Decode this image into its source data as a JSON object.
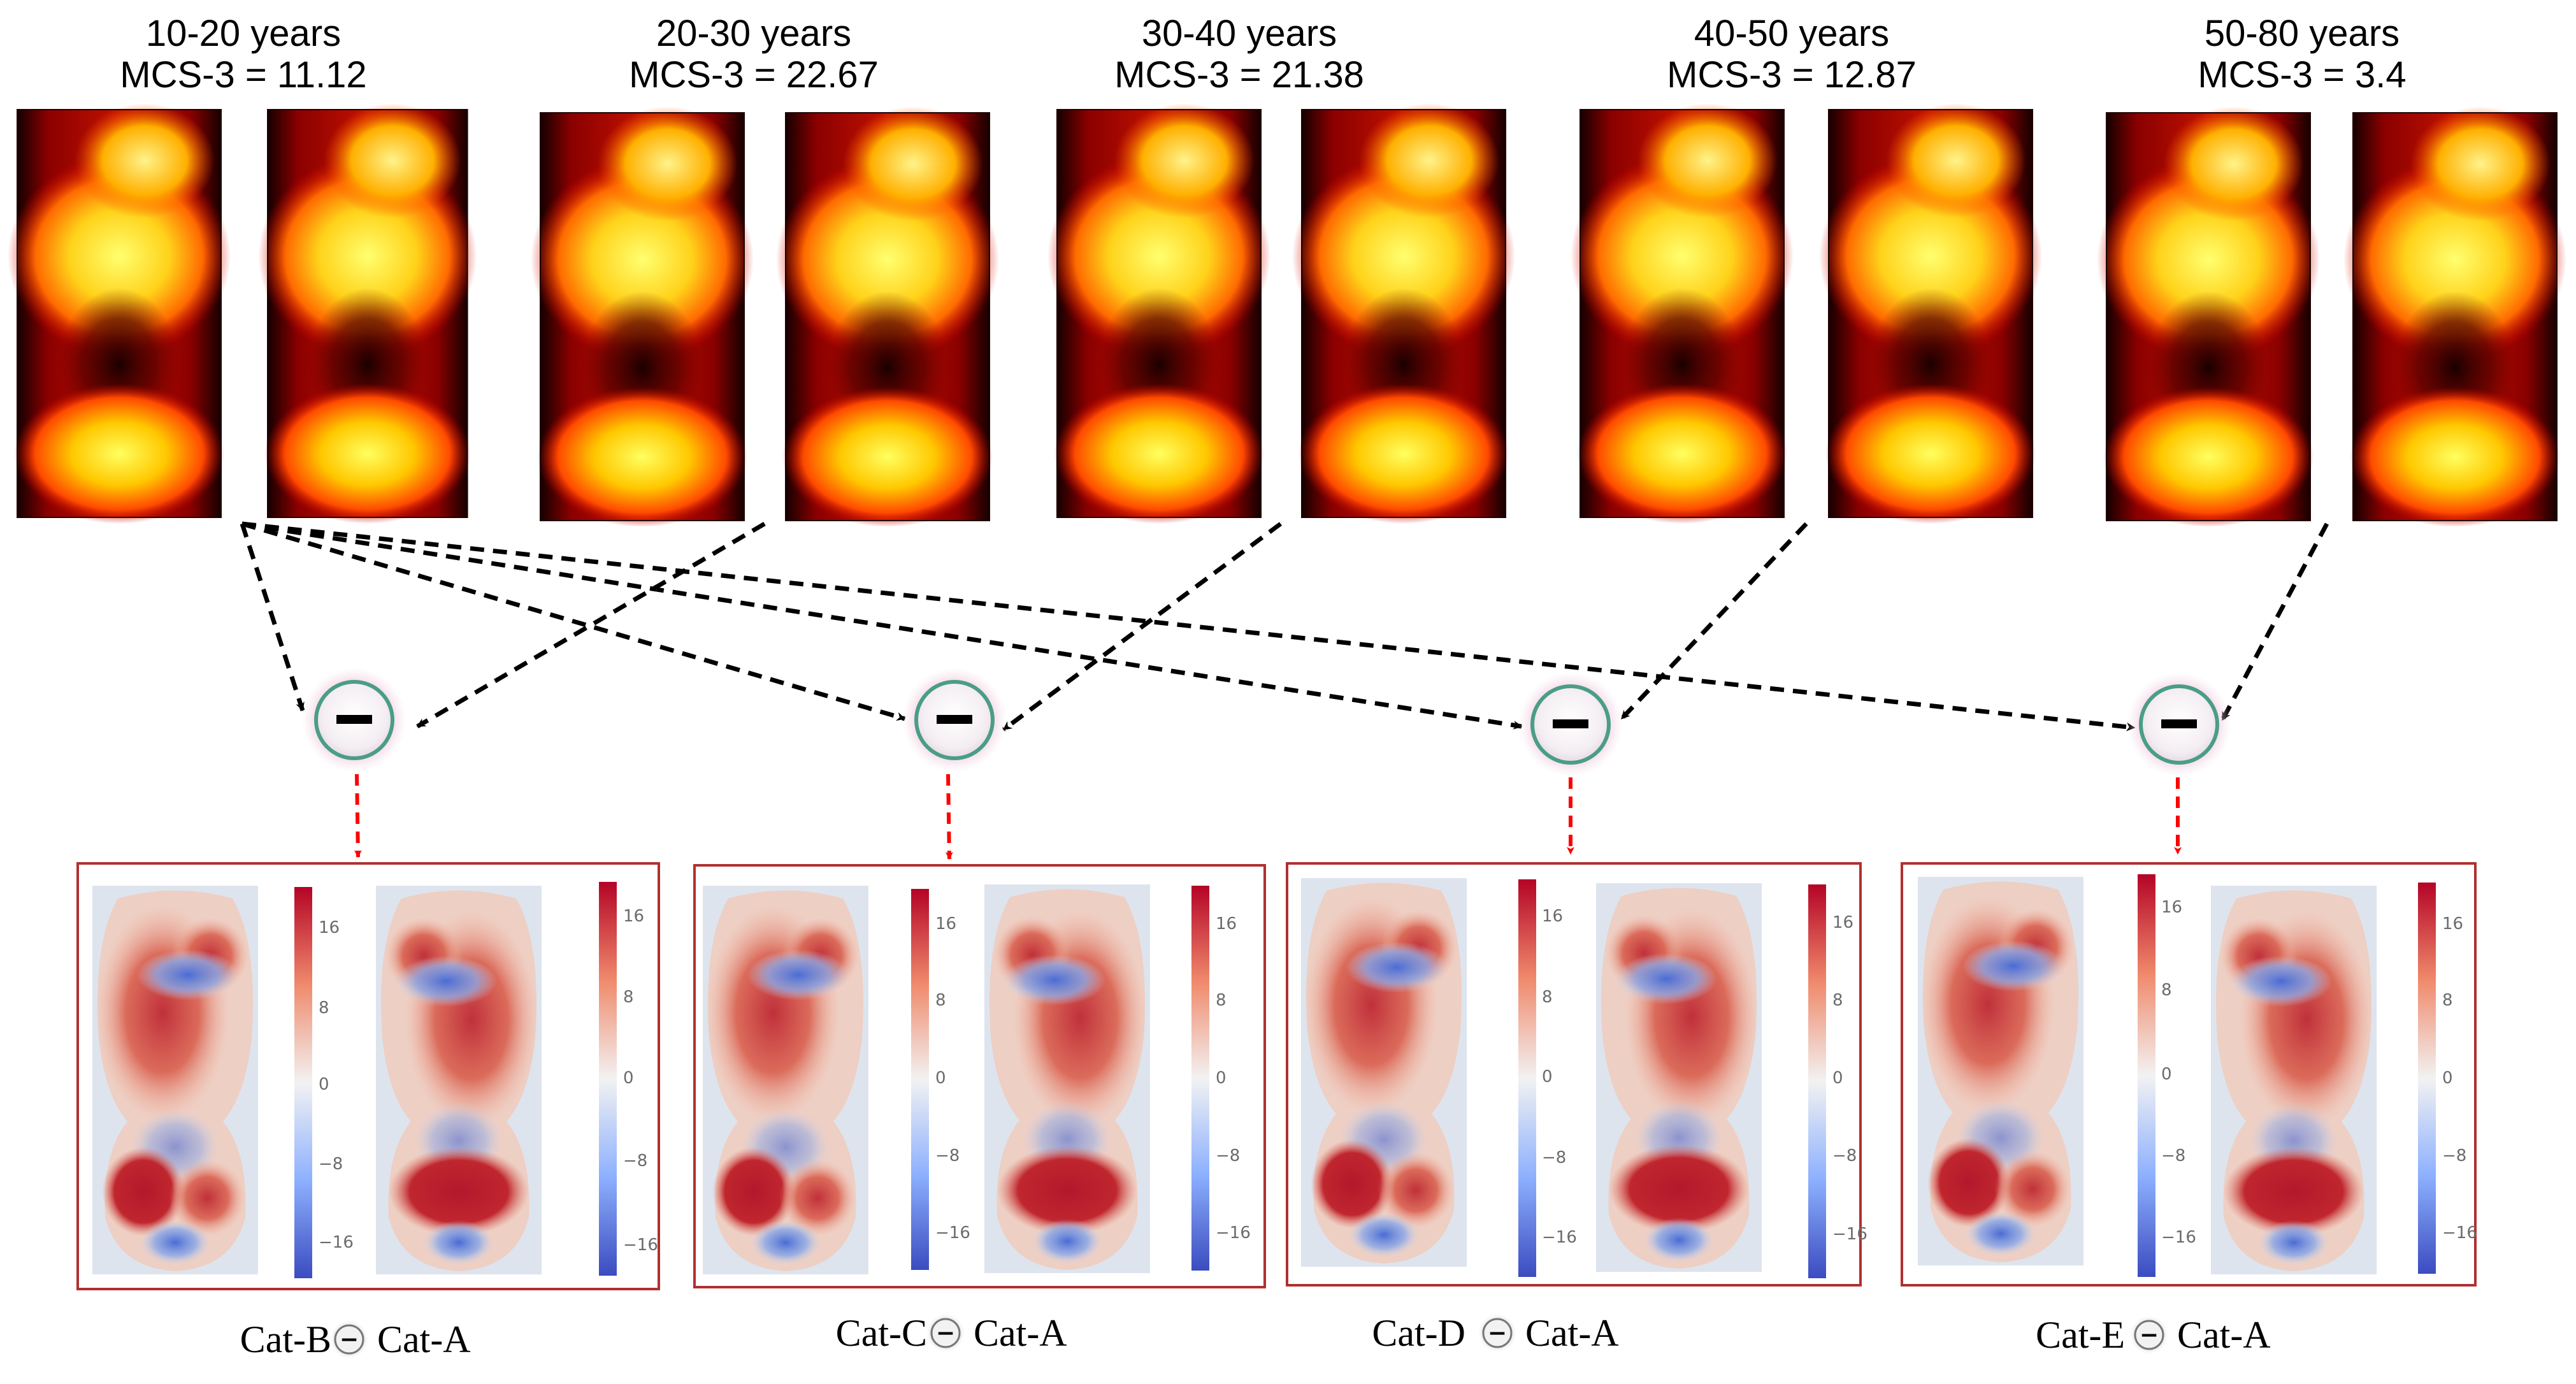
{
  "groups": [
    {
      "age": "10-20 years",
      "mcs": "MCS-3 = 11.12"
    },
    {
      "age": "20-30 years",
      "mcs": "MCS-3 = 22.67"
    },
    {
      "age": "30-40 years",
      "mcs": "MCS-3 = 21.38"
    },
    {
      "age": "40-50 years",
      "mcs": "MCS-3 = 12.87"
    },
    {
      "age": "50-80 years",
      "mcs": "MCS-3 = 3.4"
    }
  ],
  "operator_symbol": "−",
  "colorbar_ticks": [
    "16",
    "8",
    "0",
    "−8",
    "−16"
  ],
  "comparisons": [
    {
      "left": "Cat-B",
      "right": "Cat-A"
    },
    {
      "left": "Cat-C",
      "right": "Cat-A"
    },
    {
      "left": "Cat-D",
      "right": "Cat-A"
    },
    {
      "left": "Cat-E",
      "right": "Cat-A"
    }
  ],
  "colors": {
    "heat_hot": "#ffff66",
    "heat_mid": "#ff3300",
    "heat_cold": "#120000",
    "diff_pos": "#b2182b",
    "diff_neg": "#3b4cc0",
    "arrow_black": "#000000",
    "arrow_red": "#ff0000",
    "panel_border": "#b03030",
    "operator_ring": "#4a9d87"
  }
}
